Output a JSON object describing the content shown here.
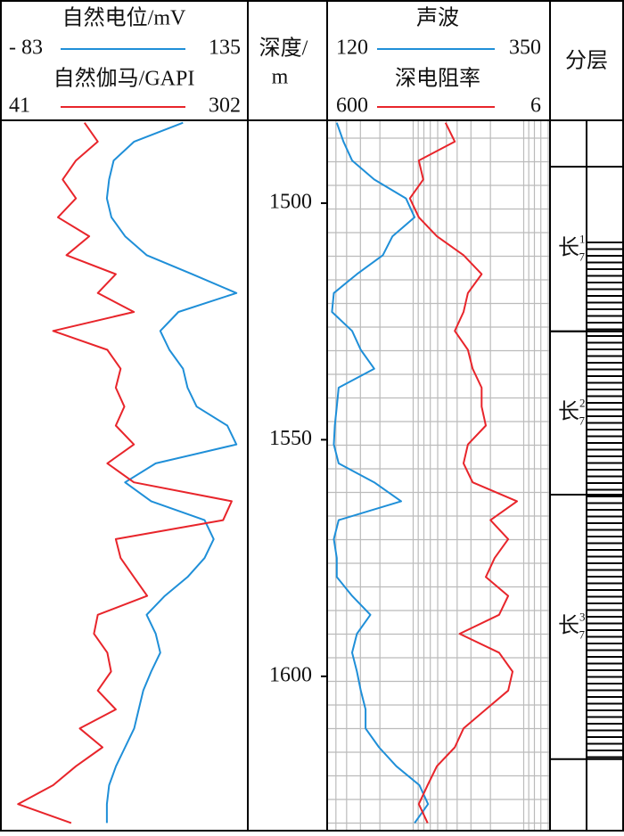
{
  "chart_data": {
    "type": "well-log",
    "depth_title": [
      "深度/",
      "m"
    ],
    "ylim": [
      1482.5,
      1632.8
    ],
    "yticks": [
      1500,
      1550,
      1600
    ],
    "depth": [
      1483,
      1487,
      1491,
      1495,
      1499,
      1503,
      1507,
      1511,
      1515,
      1519,
      1523,
      1527,
      1531,
      1535,
      1539,
      1543,
      1547,
      1551,
      1555,
      1559,
      1563,
      1567,
      1571,
      1575,
      1579,
      1583,
      1587,
      1591,
      1595,
      1599,
      1603,
      1607,
      1611,
      1615,
      1619,
      1623,
      1627,
      1631
    ],
    "tracks": [
      {
        "series": [
          {
            "name": "自然电位/mV",
            "color": "#1f8fd8",
            "xlim": [
              -83,
              135
            ],
            "xticks": [
              {
                "value": -83,
                "label": "- 83"
              },
              135
            ],
            "values": [
              78,
              35,
              17,
              13,
              11,
              15,
              27,
              46,
              86,
              125,
              74,
              58,
              66,
              78,
              82,
              90,
              117,
              125,
              54,
              27,
              50,
              97,
              105,
              97,
              82,
              62,
              46,
              54,
              58,
              50,
              43,
              39,
              35,
              27,
              19,
              13,
              11,
              11
            ]
          },
          {
            "name": "自然伽马/GAPI",
            "color": "#e8252b",
            "xlim": [
              41,
              302
            ],
            "xticks": [
              41,
              302
            ],
            "values": [
              130,
              144,
              121,
              107,
              121,
              102,
              135,
              111,
              163,
              144,
              182,
              97,
              154,
              168,
              163,
              172,
              163,
              182,
              154,
              182,
              285,
              276,
              163,
              168,
              182,
              196,
              144,
              140,
              154,
              158,
              144,
              163,
              125,
              149,
              121,
              97,
              60,
              116
            ]
          }
        ]
      },
      {
        "series": [
          {
            "name": "声波",
            "color": "#1f8fd8",
            "xlim": [
              120,
              350
            ],
            "xticks": [
              120,
              350
            ],
            "values": [
              130,
              137,
              146,
              169,
              202,
              211,
              188,
              178,
              151,
              127,
              125,
              146,
              155,
              169,
              132,
              130,
              128,
              127,
              132,
              169,
              197,
              132,
              127,
              130,
              130,
              146,
              165,
              151,
              146,
              151,
              155,
              160,
              160,
              174,
              192,
              216,
              225,
              211
            ]
          },
          {
            "name": "深电阻率",
            "color": "#e8252b",
            "xlim": [
              600,
              6
            ],
            "xticks": [
              600,
              6
            ],
            "log": true,
            "values": [
              51,
              42,
              89,
              81,
              107,
              89,
              61,
              35,
              24,
              32,
              35,
              42,
              32,
              29,
              24,
              24,
              22,
              32,
              35,
              29,
              11.5,
              20,
              13.8,
              18.3,
              22,
              13.8,
              16.7,
              38,
              16.7,
              12.6,
              13.8,
              22,
              35,
              42,
              61,
              74,
              89,
              74
            ]
          }
        ]
      }
    ],
    "layers": {
      "title": "分层",
      "items": [
        {
          "name": "长",
          "sup": "1",
          "sub": "7",
          "top": 1492.3,
          "bottom": 1527.1
        },
        {
          "name": "长",
          "sup": "2",
          "sub": "7",
          "top": 1527.1,
          "bottom": 1561.6
        },
        {
          "name": "长",
          "sup": "3",
          "sub": "7",
          "top": 1561.6,
          "bottom": 1617.5
        }
      ]
    }
  }
}
